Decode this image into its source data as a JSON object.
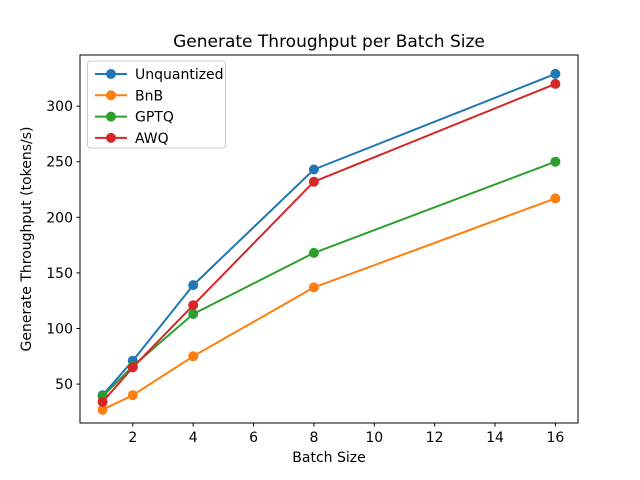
{
  "chart_data": {
    "type": "line",
    "title": "Generate Throughput per Batch Size",
    "xlabel": "Batch Size",
    "ylabel": "Generate Throughput (tokens/s)",
    "x": [
      1,
      2,
      4,
      8,
      16
    ],
    "series": [
      {
        "name": "Unquantized",
        "color": "#1f77b4",
        "values": [
          40,
          71,
          139,
          243,
          329
        ]
      },
      {
        "name": "BnB",
        "color": "#ff7f0e",
        "values": [
          27,
          40,
          75,
          137,
          217
        ]
      },
      {
        "name": "GPTQ",
        "color": "#2ca02c",
        "values": [
          39,
          66,
          113,
          168,
          250
        ]
      },
      {
        "name": "AWQ",
        "color": "#d62728",
        "values": [
          34,
          65,
          121,
          232,
          320
        ]
      }
    ],
    "xticks": [
      2,
      4,
      6,
      8,
      10,
      12,
      14,
      16
    ],
    "yticks": [
      50,
      100,
      150,
      200,
      250,
      300
    ],
    "xlim": [
      0.25,
      16.75
    ],
    "ylim": [
      15,
      346
    ],
    "grid": false,
    "marker": "o",
    "legend_position": "upper left",
    "style": {
      "spine_color": "#000000",
      "legend_edge_color": "#cccccc",
      "legend_face_color": "#ffffff",
      "line_width": 2,
      "marker_radius": 5
    }
  }
}
